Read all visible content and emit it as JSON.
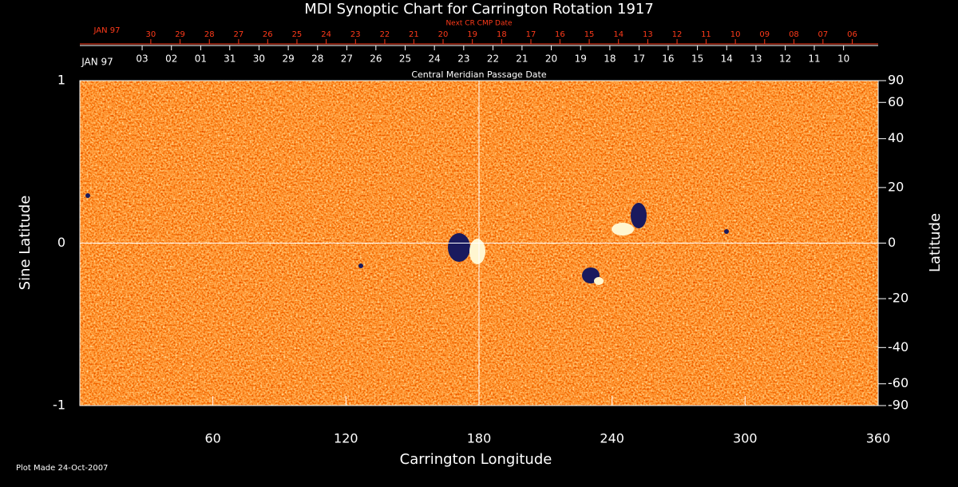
{
  "chart_data": {
    "type": "heatmap",
    "title": "MDI Synoptic Chart for Carrington Rotation 1917",
    "xlabel": "Carrington Longitude",
    "ylabel": "Sine Latitude",
    "y2label": "Latitude",
    "footer": "Plot Made 24-Oct-2007",
    "xlim": [
      0,
      360
    ],
    "xticks": [
      60,
      120,
      180,
      240,
      300,
      360
    ],
    "ylim": [
      -1,
      1
    ],
    "yticks": [
      -1,
      0,
      1
    ],
    "y2lim": [
      -90,
      90
    ],
    "y2scale": "sine",
    "y2ticks": [
      90,
      60,
      40,
      20,
      0,
      -20,
      -40,
      -60,
      -90
    ],
    "grid_lines": {
      "x": [
        180
      ],
      "y": [
        0
      ]
    },
    "top_axis": {
      "title": "Central Meridian Passage Date",
      "month_label": "JAN 97",
      "color": "#ffffff",
      "ticks": [
        {
          "value": 28.1,
          "label": "03"
        },
        {
          "value": 41.3,
          "label": "02"
        },
        {
          "value": 54.5,
          "label": "01"
        },
        {
          "value": 67.6,
          "label": "31"
        },
        {
          "value": 80.8,
          "label": "30"
        },
        {
          "value": 94.0,
          "label": "29"
        },
        {
          "value": 107.2,
          "label": "28"
        },
        {
          "value": 120.4,
          "label": "27"
        },
        {
          "value": 133.5,
          "label": "26"
        },
        {
          "value": 146.7,
          "label": "25"
        },
        {
          "value": 159.9,
          "label": "24"
        },
        {
          "value": 173.1,
          "label": "23"
        },
        {
          "value": 186.3,
          "label": "22"
        },
        {
          "value": 199.4,
          "label": "21"
        },
        {
          "value": 212.6,
          "label": "20"
        },
        {
          "value": 225.8,
          "label": "19"
        },
        {
          "value": 239.0,
          "label": "18"
        },
        {
          "value": 252.2,
          "label": "17"
        },
        {
          "value": 265.3,
          "label": "16"
        },
        {
          "value": 278.5,
          "label": "15"
        },
        {
          "value": 291.7,
          "label": "14"
        },
        {
          "value": 304.9,
          "label": "13"
        },
        {
          "value": 318.1,
          "label": "12"
        },
        {
          "value": 331.2,
          "label": "11"
        },
        {
          "value": 344.4,
          "label": "10"
        }
      ]
    },
    "next_axis": {
      "title": "Next CR CMP Date",
      "month_label": "JAN 97",
      "color": "#ff3a1a",
      "ticks": [
        {
          "value": 32.0,
          "label": "30"
        },
        {
          "value": 45.2,
          "label": "29"
        },
        {
          "value": 58.4,
          "label": "28"
        },
        {
          "value": 71.6,
          "label": "27"
        },
        {
          "value": 84.7,
          "label": "26"
        },
        {
          "value": 97.9,
          "label": "25"
        },
        {
          "value": 111.1,
          "label": "24"
        },
        {
          "value": 124.3,
          "label": "23"
        },
        {
          "value": 137.5,
          "label": "22"
        },
        {
          "value": 150.6,
          "label": "21"
        },
        {
          "value": 163.8,
          "label": "20"
        },
        {
          "value": 177.0,
          "label": "19"
        },
        {
          "value": 190.2,
          "label": "18"
        },
        {
          "value": 203.4,
          "label": "17"
        },
        {
          "value": 216.5,
          "label": "16"
        },
        {
          "value": 229.7,
          "label": "15"
        },
        {
          "value": 242.9,
          "label": "14"
        },
        {
          "value": 256.1,
          "label": "13"
        },
        {
          "value": 269.3,
          "label": "12"
        },
        {
          "value": 282.4,
          "label": "11"
        },
        {
          "value": 295.6,
          "label": "10"
        },
        {
          "value": 308.8,
          "label": "09"
        },
        {
          "value": 322.0,
          "label": "08"
        },
        {
          "value": 335.1,
          "label": "07"
        },
        {
          "value": 348.3,
          "label": "06"
        }
      ]
    }
  }
}
